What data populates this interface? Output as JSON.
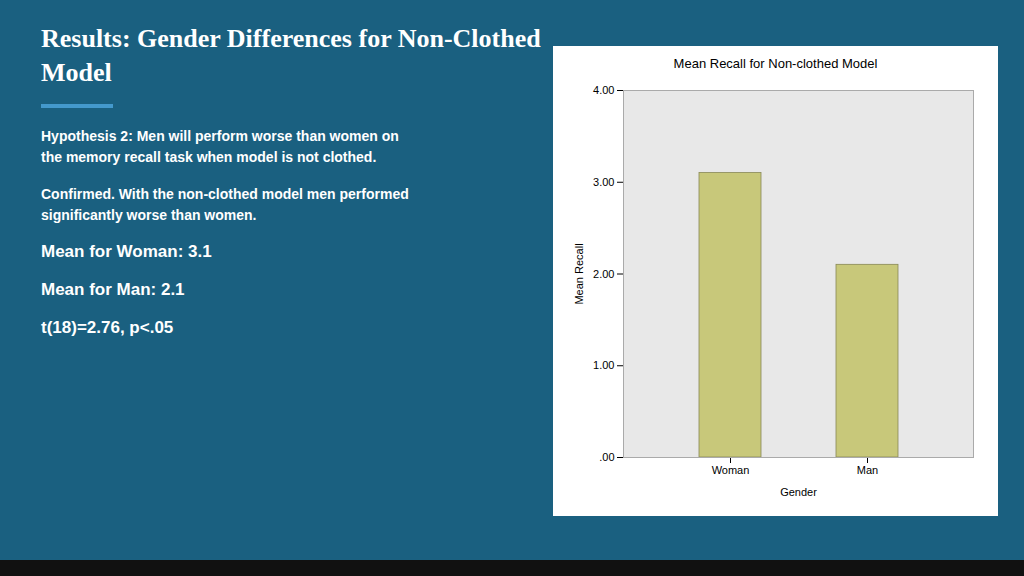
{
  "title": "Results: Gender Differences for Non-Clothed\nModel",
  "annotations": [
    "Hypothesis 2: Men will perform worse than women on\nthe memory recall task when model is not clothed.",
    "Confirmed. With the non-clothed model men performed\nsignificantly worse than women.",
    "Mean for Woman: 3.1",
    "Mean for Man: 2.1",
    "t(18)=2.76, p<.05"
  ],
  "chart_data": {
    "type": "bar",
    "title": "Mean Recall for Non-clothed Model",
    "xlabel": "Gender",
    "ylabel": "Mean Recall",
    "categories": [
      "Woman",
      "Man"
    ],
    "values": [
      3.1,
      2.1
    ],
    "color": "#c8c87a",
    "ylim": [
      0,
      4.0
    ],
    "yticks": [
      {
        "value": 0,
        "label": ".00"
      },
      {
        "value": 1,
        "label": "1.00"
      },
      {
        "value": 2,
        "label": "2.00"
      },
      {
        "value": 3,
        "label": "3.00"
      },
      {
        "value": 4,
        "label": "4.00"
      }
    ],
    "grid": false
  }
}
